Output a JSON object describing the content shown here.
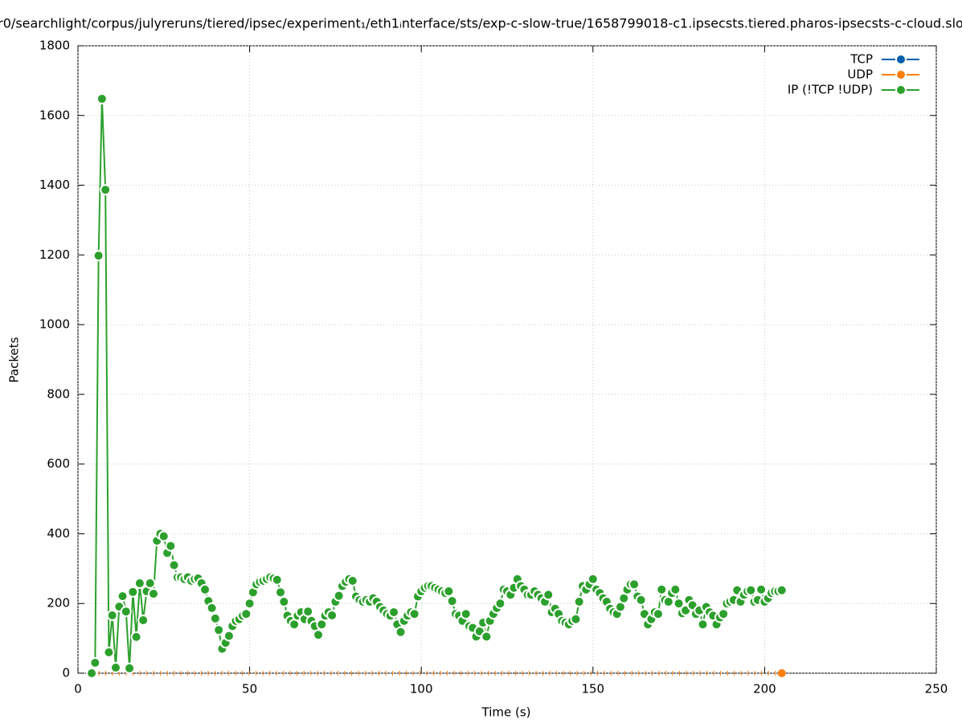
{
  "chart_data": {
    "type": "line",
    "title": "r0/searchlight/corpus/julyreruns/tiered/ipsec/experiment₁/eth1ᵢnterface/sts/exp-c-slow-true/1658799018-c1.ipsecsts.tiered.pharos-ipsecsts-c-cloud.slo",
    "x_label": "Time (s)",
    "y_label": "Packets",
    "xlim": [
      0,
      250
    ],
    "xticks": [
      0,
      50,
      100,
      150,
      200,
      250
    ],
    "ylim": [
      0,
      1800
    ],
    "yticks": [
      0,
      200,
      400,
      600,
      800,
      1000,
      1200,
      1400,
      1600,
      1800
    ],
    "grid": true,
    "legend": "top-right",
    "series": [
      {
        "name": "TCP",
        "color": "#0060ad",
        "x": [],
        "values": []
      },
      {
        "name": "UDP",
        "color": "#ff7f0e",
        "x": [
          4,
          205
        ],
        "values": [
          0,
          0
        ]
      },
      {
        "name": "IP (!TCP  !UDP)",
        "color": "#2ca02c",
        "x": [
          4,
          5,
          6,
          7,
          8,
          9,
          10,
          11,
          12,
          13,
          14,
          15,
          16,
          17,
          18,
          19,
          20,
          21,
          22,
          23,
          24,
          25,
          26,
          27,
          28,
          29,
          30,
          31,
          32,
          33,
          34,
          35,
          36,
          37,
          38,
          39,
          40,
          41,
          42,
          43,
          44,
          45,
          46,
          47,
          48,
          49,
          50,
          51,
          52,
          53,
          54,
          55,
          56,
          57,
          58,
          59,
          60,
          61,
          62,
          63,
          64,
          65,
          66,
          67,
          68,
          69,
          70,
          71,
          72,
          73,
          74,
          75,
          76,
          77,
          78,
          79,
          80,
          81,
          82,
          83,
          84,
          85,
          86,
          87,
          88,
          89,
          90,
          91,
          92,
          93,
          94,
          95,
          96,
          97,
          98,
          99,
          100,
          101,
          102,
          103,
          104,
          105,
          106,
          107,
          108,
          109,
          110,
          111,
          112,
          113,
          114,
          115,
          116,
          117,
          118,
          119,
          120,
          121,
          122,
          123,
          124,
          125,
          126,
          127,
          128,
          129,
          130,
          131,
          132,
          133,
          134,
          135,
          136,
          137,
          138,
          139,
          140,
          141,
          142,
          143,
          144,
          145,
          146,
          147,
          148,
          149,
          150,
          151,
          152,
          153,
          154,
          155,
          156,
          157,
          158,
          159,
          160,
          161,
          162,
          163,
          164,
          165,
          166,
          167,
          168,
          169,
          170,
          171,
          172,
          173,
          174,
          175,
          176,
          177,
          178,
          179,
          180,
          181,
          182,
          183,
          184,
          185,
          186,
          187,
          188,
          189,
          190,
          191,
          192,
          193,
          194,
          195,
          196,
          197,
          198,
          199,
          200,
          201,
          202,
          203,
          204,
          205
        ],
        "values": [
          0,
          30,
          1198,
          1648,
          1387,
          60,
          166,
          16,
          191,
          221,
          177,
          14,
          233,
          104,
          258,
          152,
          235,
          258,
          228,
          380,
          400,
          393,
          345,
          365,
          310,
          275,
          275,
          270,
          275,
          265,
          270,
          272,
          258,
          240,
          207,
          187,
          157,
          124,
          70,
          87,
          107,
          135,
          150,
          155,
          165,
          170,
          200,
          232,
          255,
          262,
          265,
          270,
          275,
          272,
          268,
          232,
          205,
          165,
          150,
          140,
          165,
          175,
          155,
          177,
          150,
          135,
          110,
          140,
          165,
          175,
          166,
          205,
          222,
          250,
          262,
          270,
          265,
          220,
          210,
          205,
          210,
          205,
          215,
          205,
          190,
          180,
          170,
          165,
          175,
          140,
          118,
          150,
          165,
          175,
          170,
          220,
          235,
          245,
          250,
          250,
          245,
          240,
          235,
          230,
          235,
          207,
          170,
          165,
          150,
          170,
          135,
          130,
          105,
          120,
          145,
          105,
          150,
          170,
          187,
          200,
          240,
          235,
          225,
          245,
          270,
          250,
          240,
          225,
          225,
          235,
          225,
          215,
          205,
          225,
          175,
          185,
          170,
          150,
          145,
          140,
          150,
          155,
          205,
          250,
          240,
          255,
          270,
          240,
          230,
          215,
          205,
          185,
          175,
          170,
          190,
          215,
          240,
          255,
          255,
          220,
          210,
          170,
          140,
          155,
          175,
          170,
          240,
          210,
          205,
          230,
          240,
          200,
          172,
          180,
          210,
          195,
          170,
          180,
          140,
          190,
          175,
          165,
          140,
          160,
          170,
          200,
          205,
          210,
          238,
          205,
          225,
          235,
          238,
          205,
          210,
          240,
          205,
          215,
          230,
          235,
          235,
          238
        ]
      }
    ]
  }
}
